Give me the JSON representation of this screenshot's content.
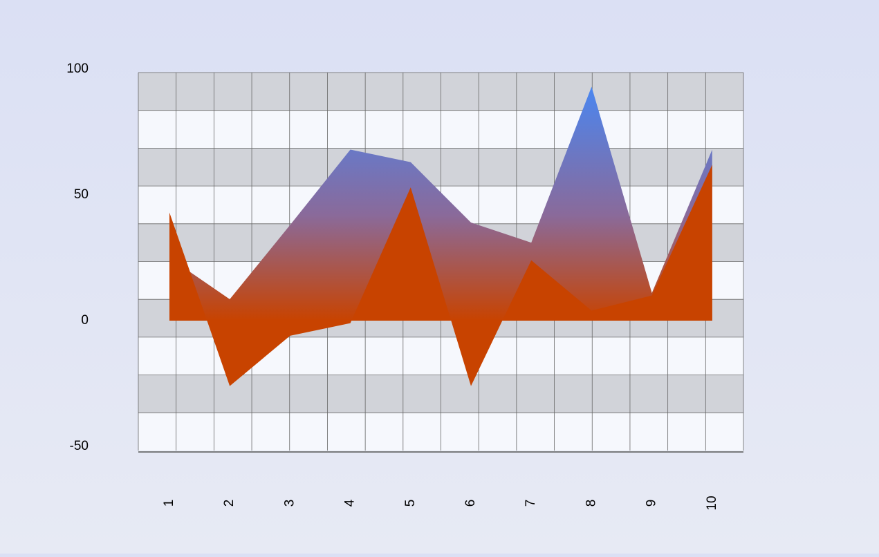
{
  "chart_data": {
    "type": "area",
    "categories": [
      "1",
      "2",
      "3",
      "4",
      "5",
      "6",
      "7",
      "8",
      "9",
      "10"
    ],
    "series": [
      {
        "color": "#4a86f0",
        "values": [
          25,
          8.5,
          38,
          68,
          63,
          39,
          31,
          93,
          11,
          68
        ]
      },
      {
        "color": "#c84300",
        "values": [
          43,
          -26,
          -6,
          -1,
          53,
          -26,
          24,
          4,
          10,
          62
        ]
      }
    ],
    "ylim": [
      -50,
      100
    ],
    "yticks": [
      -50,
      0,
      50,
      100
    ]
  }
}
